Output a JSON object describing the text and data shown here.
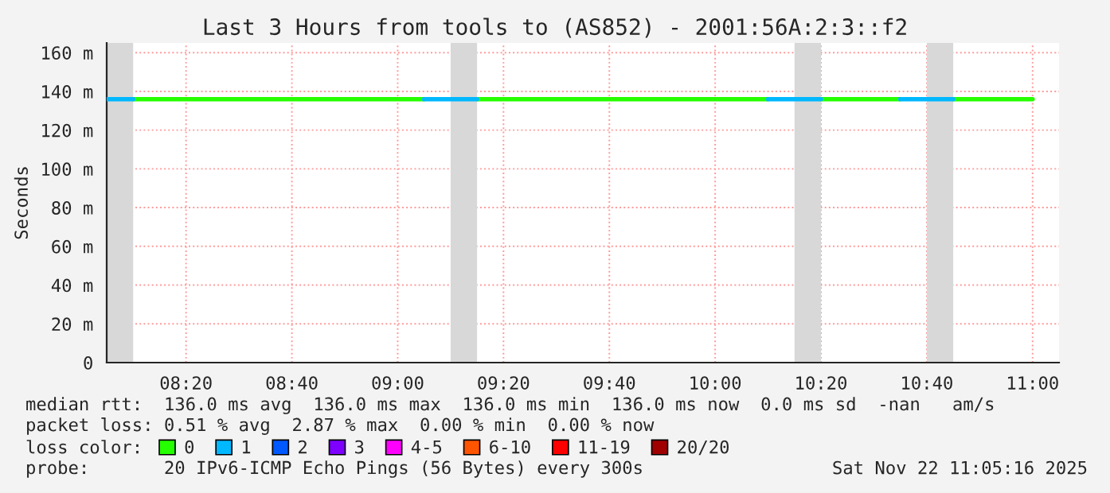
{
  "chart_data": {
    "type": "line",
    "title": "Last 3 Hours from tools to (AS852) - 2001:56A:2:3::f2",
    "ylabel": "Seconds",
    "series": [
      {
        "name": "0",
        "color": "#26ff00",
        "x": [
          8.1667,
          9.0833
        ],
        "values": [
          136,
          136
        ]
      },
      {
        "name": "1",
        "color": "#00b8ff",
        "x": [
          8.0833,
          8.1667
        ],
        "values": [
          136,
          136
        ]
      },
      {
        "name": "2",
        "color": "#0059ff",
        "values": [
          null,
          null,
          null,
          null,
          null,
          null,
          null,
          null,
          null,
          null,
          null,
          null,
          null,
          null,
          null,
          null,
          null,
          null,
          null,
          null,
          null,
          null,
          null,
          null,
          null,
          null,
          null,
          null,
          null,
          null,
          null,
          null,
          null,
          null,
          null,
          null
        ]
      },
      {
        "name": "3",
        "color": "#7e00ff",
        "values": [
          null,
          null,
          null,
          null,
          null,
          null,
          null,
          null,
          null,
          null,
          null,
          null,
          null,
          null,
          null,
          null,
          null,
          null,
          null,
          null,
          null,
          null,
          null,
          null,
          null,
          null,
          null,
          null,
          null,
          null,
          null,
          null,
          null,
          null,
          null,
          null
        ]
      },
      {
        "name": "4-5",
        "color": "#ff00ff",
        "values": [
          null,
          null,
          null,
          null,
          null,
          null,
          null,
          null,
          null,
          null,
          null,
          null,
          null,
          null,
          null,
          null,
          null,
          null,
          null,
          null,
          null,
          null,
          null,
          null,
          null,
          null,
          null,
          null,
          null,
          null,
          null,
          null,
          null,
          null,
          null,
          null
        ]
      },
      {
        "name": "6-10",
        "color": "#ff5500",
        "values": [
          null,
          null,
          null,
          null,
          null,
          null,
          null,
          null,
          null,
          null,
          null,
          null,
          null,
          null,
          null,
          null,
          null,
          null,
          null,
          null,
          null,
          null,
          null,
          null,
          null,
          null,
          null,
          null,
          null,
          null,
          null,
          null,
          null,
          null,
          null,
          null
        ]
      },
      {
        "name": "11-19",
        "color": "#ff0000",
        "values": [
          null,
          null,
          null,
          null,
          null,
          null,
          null,
          null,
          null,
          null,
          null,
          null,
          null,
          null,
          null,
          null,
          null,
          null,
          null,
          null,
          null,
          null,
          null,
          null,
          null,
          null,
          null,
          null,
          null,
          null,
          null,
          null,
          null,
          null,
          null,
          null
        ]
      },
      {
        "name": "20/20",
        "color": "#a10000",
        "values": [
          null,
          null,
          null,
          null,
          null,
          null,
          null,
          null,
          null,
          null,
          null,
          null,
          null,
          null,
          null,
          null,
          null,
          null,
          null,
          null,
          null,
          null,
          null,
          null,
          null,
          null,
          null,
          null,
          null,
          null,
          null,
          null,
          null,
          null,
          null,
          null
        ]
      },
      {
        "color": "#26ff00",
        "x": [
          9.25,
          10.1667
        ],
        "values": [
          136,
          136
        ]
      },
      {
        "color": "#26ff00",
        "x": [
          10.3333,
          10.5833
        ],
        "values": [
          136,
          136
        ]
      },
      {
        "color": "#26ff00",
        "x": [
          10.75,
          11
        ],
        "values": [
          136,
          136
        ]
      },
      {
        "color": "#00b8ff",
        "x": [
          9.0833,
          9.25
        ],
        "values": [
          136,
          136
        ]
      },
      {
        "color": "#00b8ff",
        "x": [
          10.1667,
          10.3333
        ],
        "values": [
          136,
          136
        ]
      },
      {
        "color": "#00b8ff",
        "x": [
          10.5833,
          10.75
        ],
        "values": [
          136,
          136
        ]
      }
    ],
    "xlim": [
      8.0833,
      11.0833
    ],
    "xticks": [
      {
        "value": 8.3333,
        "label": "08:20"
      },
      {
        "value": 8.6667,
        "label": "08:40"
      },
      {
        "value": 9,
        "label": "09:00"
      },
      {
        "value": 9.3333,
        "label": "09:20"
      },
      {
        "value": 9.6667,
        "label": "09:40"
      },
      {
        "value": 10,
        "label": "10:00"
      },
      {
        "value": 10.3333,
        "label": "10:20"
      },
      {
        "value": 10.6667,
        "label": "10:40"
      },
      {
        "value": 11,
        "label": "11:00"
      }
    ],
    "ylim": [
      0,
      165
    ],
    "yticks": [
      0,
      {
        "value": 20,
        "label": "20 m"
      },
      {
        "value": 40,
        "label": "40 m"
      },
      {
        "value": 60,
        "label": "60 m"
      },
      {
        "value": 80,
        "label": "80 m"
      },
      {
        "value": 100,
        "label": "100 m"
      },
      {
        "value": 120,
        "label": "120 m"
      },
      {
        "value": 140,
        "label": "140 m"
      },
      {
        "value": 160,
        "label": "160 m"
      }
    ],
    "bands": [
      {
        "axis": "x",
        "from": 8.0833,
        "to": 8.1667,
        "color": "#d8d8d8"
      },
      {
        "axis": "x",
        "from": 9.1667,
        "to": 9.25,
        "color": "#d8d8d8"
      },
      {
        "axis": "x",
        "from": 10.25,
        "to": 10.3333,
        "color": "#d8d8d8"
      },
      {
        "axis": "x",
        "from": 10.6667,
        "to": 10.75,
        "color": "#d8d8d8"
      }
    ],
    "grid": true,
    "legend": "bottom",
    "legend_title": "loss color:",
    "annotations": [
      "median rtt:  136.0 ms avg  136.0 ms max  136.0 ms min  136.0 ms now  0.0 ms sd  -nan   am/s",
      "packet loss: 0.51 % avg  2.87 % max  0.00 % min  0.00 % now",
      "probe:       20 IPv6-ICMP Echo Pings (56 Bytes) every 300s",
      "Sat Nov 22 11:05:16 2025"
    ]
  }
}
